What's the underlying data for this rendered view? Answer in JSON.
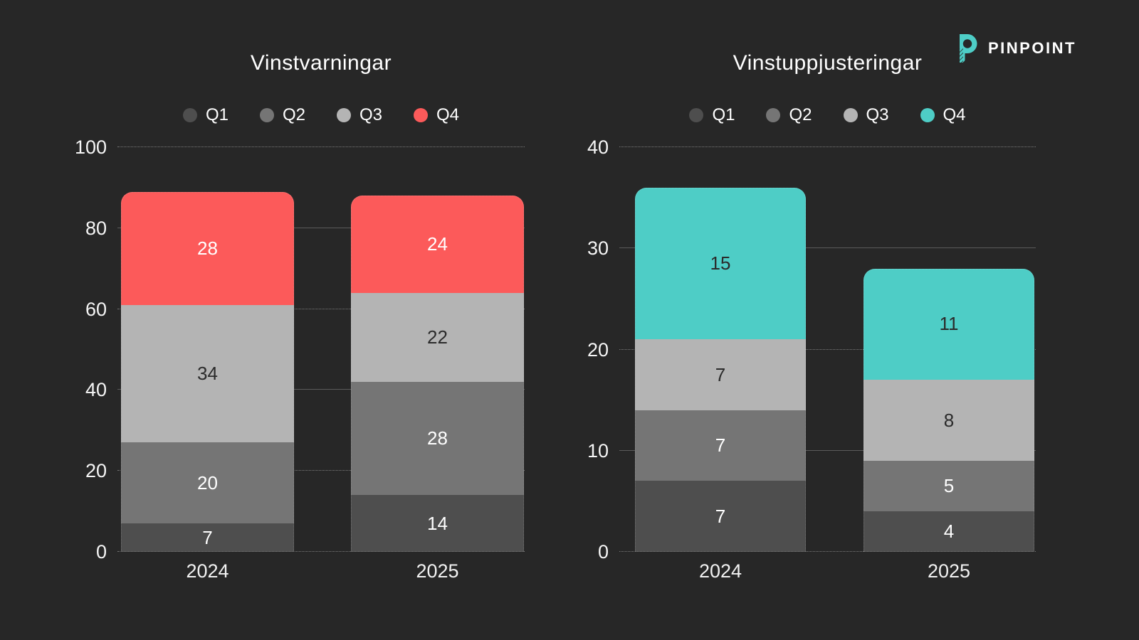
{
  "logo": {
    "text": "PINPOINT",
    "icon": "pinpoint-p-icon",
    "icon_color": "#4ecdc6"
  },
  "theme": {
    "background": "#272727",
    "text_color": "#ffffff",
    "grid_solid_color": "#5b5b5b",
    "grid_dotted_color": "#7a7a7a"
  },
  "chart_data": [
    {
      "type": "bar",
      "stacked": true,
      "title": "Vinstvarningar",
      "categories": [
        "2024",
        "2025"
      ],
      "series": [
        {
          "name": "Q1",
          "color": "#4e4e4e",
          "label_color": "#ffffff",
          "values": [
            7,
            14
          ]
        },
        {
          "name": "Q2",
          "color": "#757575",
          "label_color": "#ffffff",
          "values": [
            20,
            28
          ]
        },
        {
          "name": "Q3",
          "color": "#b4b4b4",
          "label_color": "#2b2b2b",
          "values": [
            34,
            22
          ]
        },
        {
          "name": "Q4",
          "color": "#fc5a5a",
          "label_color": "#ffffff",
          "values": [
            28,
            24
          ]
        }
      ],
      "totals": [
        89,
        88
      ],
      "ylim": [
        0,
        100
      ],
      "ytick_step": 20,
      "yticks": [
        0,
        20,
        40,
        60,
        80,
        100
      ],
      "grid": "horizontal",
      "legend_position": "top"
    },
    {
      "type": "bar",
      "stacked": true,
      "title": "Vinstuppjusteringar",
      "categories": [
        "2024",
        "2025"
      ],
      "series": [
        {
          "name": "Q1",
          "color": "#4e4e4e",
          "label_color": "#ffffff",
          "values": [
            7,
            4
          ]
        },
        {
          "name": "Q2",
          "color": "#757575",
          "label_color": "#ffffff",
          "values": [
            7,
            5
          ]
        },
        {
          "name": "Q3",
          "color": "#b4b4b4",
          "label_color": "#2b2b2b",
          "values": [
            7,
            8
          ]
        },
        {
          "name": "Q4",
          "color": "#4ecdc6",
          "label_color": "#2b2b2b",
          "values": [
            15,
            11
          ]
        }
      ],
      "totals": [
        36,
        28
      ],
      "ylim": [
        0,
        40
      ],
      "ytick_step": 10,
      "yticks": [
        0,
        10,
        20,
        30,
        40
      ],
      "grid": "horizontal",
      "legend_position": "top"
    }
  ]
}
